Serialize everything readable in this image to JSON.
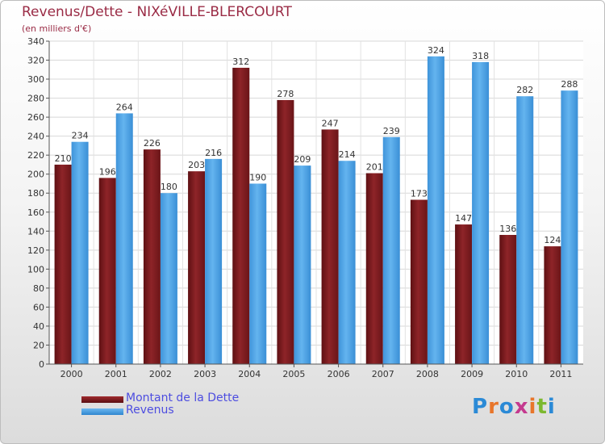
{
  "chart_data": {
    "type": "bar",
    "title": "Revenus/Dette - NIXéVILLE-BLERCOURT",
    "subtitle": "(en milliers d'€)",
    "categories": [
      "2000",
      "2001",
      "2002",
      "2003",
      "2004",
      "2005",
      "2006",
      "2007",
      "2008",
      "2009",
      "2010",
      "2011"
    ],
    "series": [
      {
        "name": "Montant de la Dette",
        "values": [
          210,
          196,
          226,
          203,
          312,
          278,
          247,
          201,
          173,
          147,
          136,
          124
        ],
        "color": "#7a1d20"
      },
      {
        "name": "Revenus",
        "values": [
          234,
          264,
          180,
          216,
          190,
          209,
          214,
          239,
          324,
          318,
          282,
          288
        ],
        "color": "#4ea4e6"
      }
    ],
    "ylim": [
      0,
      340
    ],
    "yticks": [
      0,
      20,
      40,
      60,
      80,
      100,
      120,
      140,
      160,
      180,
      200,
      220,
      240,
      260,
      280,
      300,
      320,
      340
    ],
    "grid": true,
    "legend_position": "bottom-left"
  },
  "logo": {
    "text": "Proxiti",
    "letter_colors": [
      "#2b8ad6",
      "#e8762b",
      "#2b8ad6",
      "#c43a8f",
      "#e8762b",
      "#7cb82f",
      "#2b8ad6"
    ]
  }
}
